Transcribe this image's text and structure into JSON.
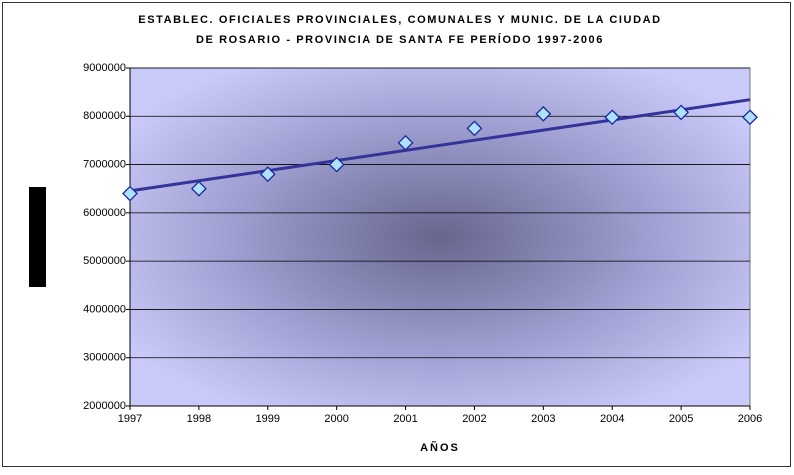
{
  "chart_data": {
    "type": "scatter",
    "title": [
      "ESTABLEC. OFICIALES PROVINCIALES, COMUNALES Y MUNIC. DE LA CIUDAD",
      "DE ROSARIO - PROVINCIA DE SANTA FE  PERÍODO 1997-2006"
    ],
    "x_label": "AÑOS",
    "x": [
      1997,
      1998,
      1999,
      2000,
      2001,
      2002,
      2003,
      2004,
      2005,
      2006
    ],
    "series": [
      {
        "name": null,
        "color": "#aee0ff",
        "values": [
          6400000,
          6500000,
          6800000,
          7000000,
          7450000,
          7750000,
          8050000,
          7980000,
          8080000,
          7980000
        ]
      }
    ],
    "trendline": "linear",
    "trendline_color": "#333399",
    "xlim": [
      1997,
      2006
    ],
    "xticks": [
      1997,
      1998,
      1999,
      2000,
      2001,
      2002,
      2003,
      2004,
      2005,
      2006
    ],
    "ylim": [
      2000000,
      9000000
    ],
    "yticks": [
      2000000,
      3000000,
      4000000,
      5000000,
      6000000,
      7000000,
      8000000,
      9000000
    ],
    "grid": true
  }
}
